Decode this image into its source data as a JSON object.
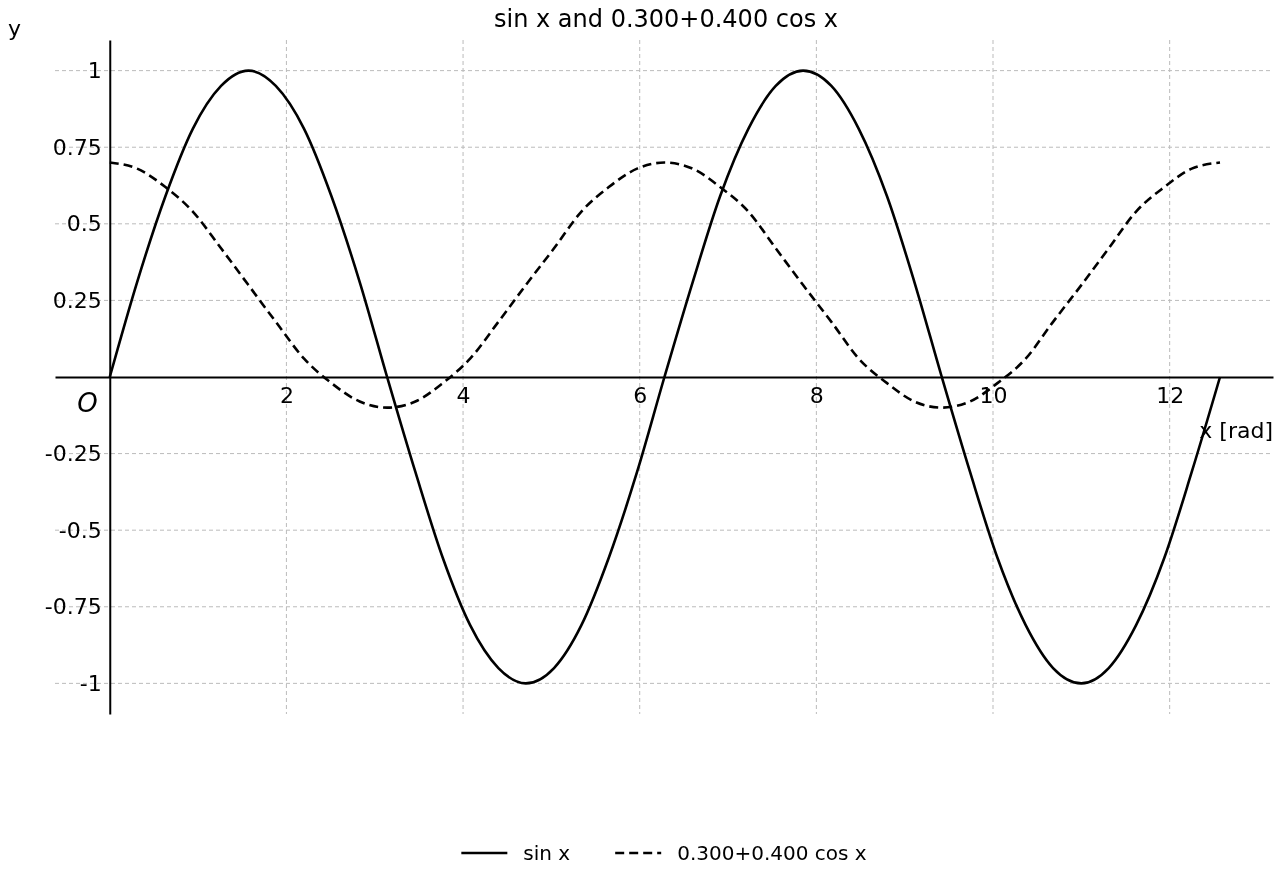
{
  "chart_data": {
    "type": "line",
    "title": "sin x and 0.300+0.400 cos x",
    "xlabel": "x [rad]",
    "ylabel": "y",
    "x": [
      0,
      0.31,
      0.63,
      0.94,
      1.26,
      1.57,
      1.88,
      2.2,
      2.51,
      2.83,
      3.14,
      3.46,
      3.77,
      4.08,
      4.4,
      4.71,
      5.03,
      5.34,
      5.65,
      5.97,
      6.28,
      6.6,
      6.91,
      7.23,
      7.54,
      7.85,
      8.17,
      8.48,
      8.8,
      9.11,
      9.42,
      9.74,
      10.05,
      10.37,
      10.68,
      11.0,
      11.31,
      11.62,
      11.94,
      12.25,
      12.57
    ],
    "series": [
      {
        "name": "sin x",
        "color": "#000000",
        "line_style": "solid",
        "values": [
          0,
          0.31,
          0.59,
          0.81,
          0.95,
          1,
          0.95,
          0.81,
          0.59,
          0.31,
          0,
          -0.31,
          -0.59,
          -0.81,
          -0.95,
          -1,
          -0.95,
          -0.81,
          -0.59,
          -0.31,
          0,
          0.31,
          0.59,
          0.81,
          0.95,
          1,
          0.95,
          0.81,
          0.59,
          0.31,
          0,
          -0.31,
          -0.59,
          -0.81,
          -0.95,
          -1,
          -0.95,
          -0.81,
          -0.59,
          -0.31,
          0
        ]
      },
      {
        "name": "0.300+0.400 cos x",
        "color": "#000000",
        "line_style": "dashed",
        "values": [
          0.7,
          0.68,
          0.62,
          0.54,
          0.42,
          0.3,
          0.18,
          0.06,
          -0.02,
          -0.08,
          -0.1,
          -0.08,
          -0.02,
          0.06,
          0.18,
          0.3,
          0.42,
          0.54,
          0.62,
          0.68,
          0.7,
          0.68,
          0.62,
          0.54,
          0.42,
          0.3,
          0.18,
          0.06,
          -0.02,
          -0.08,
          -0.1,
          -0.08,
          -0.02,
          0.06,
          0.18,
          0.3,
          0.42,
          0.54,
          0.62,
          0.68,
          0.7
        ]
      }
    ],
    "xlim": [
      -0.62,
      13.17
    ],
    "ylim": [
      -1.1,
      1.1
    ],
    "xticks": [
      2,
      4,
      6,
      8,
      10,
      12
    ],
    "yticks": [
      -1,
      -0.75,
      -0.5,
      -0.25,
      0.25,
      0.5,
      0.75,
      1
    ],
    "annotations": [
      {
        "text": "O",
        "x": 0,
        "y": 0
      }
    ],
    "grid": true,
    "legend": "bottom",
    "marker": "none"
  }
}
